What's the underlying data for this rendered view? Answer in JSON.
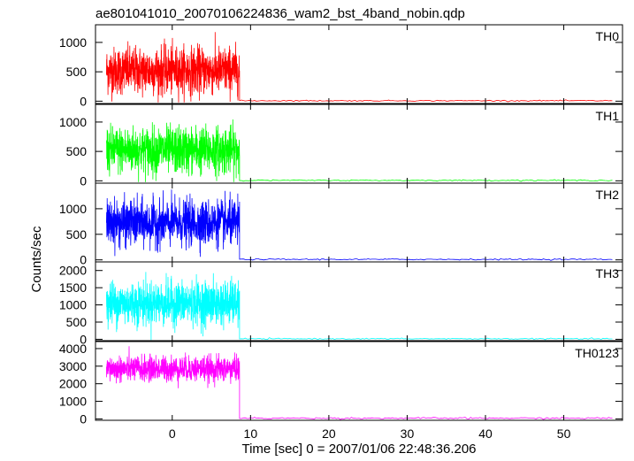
{
  "chart_data": {
    "type": "line",
    "title": "ae801041010_20070106224836_wam2_bst_4band_nobin.qdp",
    "xlabel": "Time [sec] 0 = 2007/01/06 22:48:36.206",
    "ylabel": "Counts/sec",
    "xlim": [
      -9.8,
      57.5
    ],
    "x_ticks": [
      0,
      10,
      20,
      30,
      40,
      50
    ],
    "burst_end_time": 8.6,
    "panels": [
      {
        "name": "TH0",
        "color": "#ff0000",
        "ylim": [
          -40,
          1300
        ],
        "y_ticks": [
          0,
          500,
          1000
        ],
        "active_range": [
          -8.4,
          8.6
        ],
        "mean_active": 520,
        "std_active": 200,
        "quiet_level": 8
      },
      {
        "name": "TH1",
        "color": "#00ff00",
        "ylim": [
          -40,
          1300
        ],
        "y_ticks": [
          0,
          500,
          1000
        ],
        "active_range": [
          -8.4,
          8.6
        ],
        "mean_active": 520,
        "std_active": 200,
        "quiet_level": 8
      },
      {
        "name": "TH2",
        "color": "#0000ff",
        "ylim": [
          -40,
          1500
        ],
        "y_ticks": [
          0,
          500,
          1000
        ],
        "active_range": [
          -8.4,
          8.6
        ],
        "mean_active": 720,
        "std_active": 220,
        "quiet_level": 10
      },
      {
        "name": "TH3",
        "color": "#00ffff",
        "ylim": [
          -40,
          2250
        ],
        "y_ticks": [
          0,
          500,
          1000,
          1500,
          2000
        ],
        "active_range": [
          -8.4,
          8.6
        ],
        "mean_active": 1050,
        "std_active": 320,
        "quiet_level": 15
      },
      {
        "name": "TH0123",
        "color": "#ff00ff",
        "ylim": [
          -80,
          4400
        ],
        "y_ticks": [
          0,
          1000,
          2000,
          3000,
          4000
        ],
        "active_range": [
          -8.4,
          8.6
        ],
        "mean_active": 2850,
        "std_active": 360,
        "quiet_level": 40
      }
    ]
  }
}
